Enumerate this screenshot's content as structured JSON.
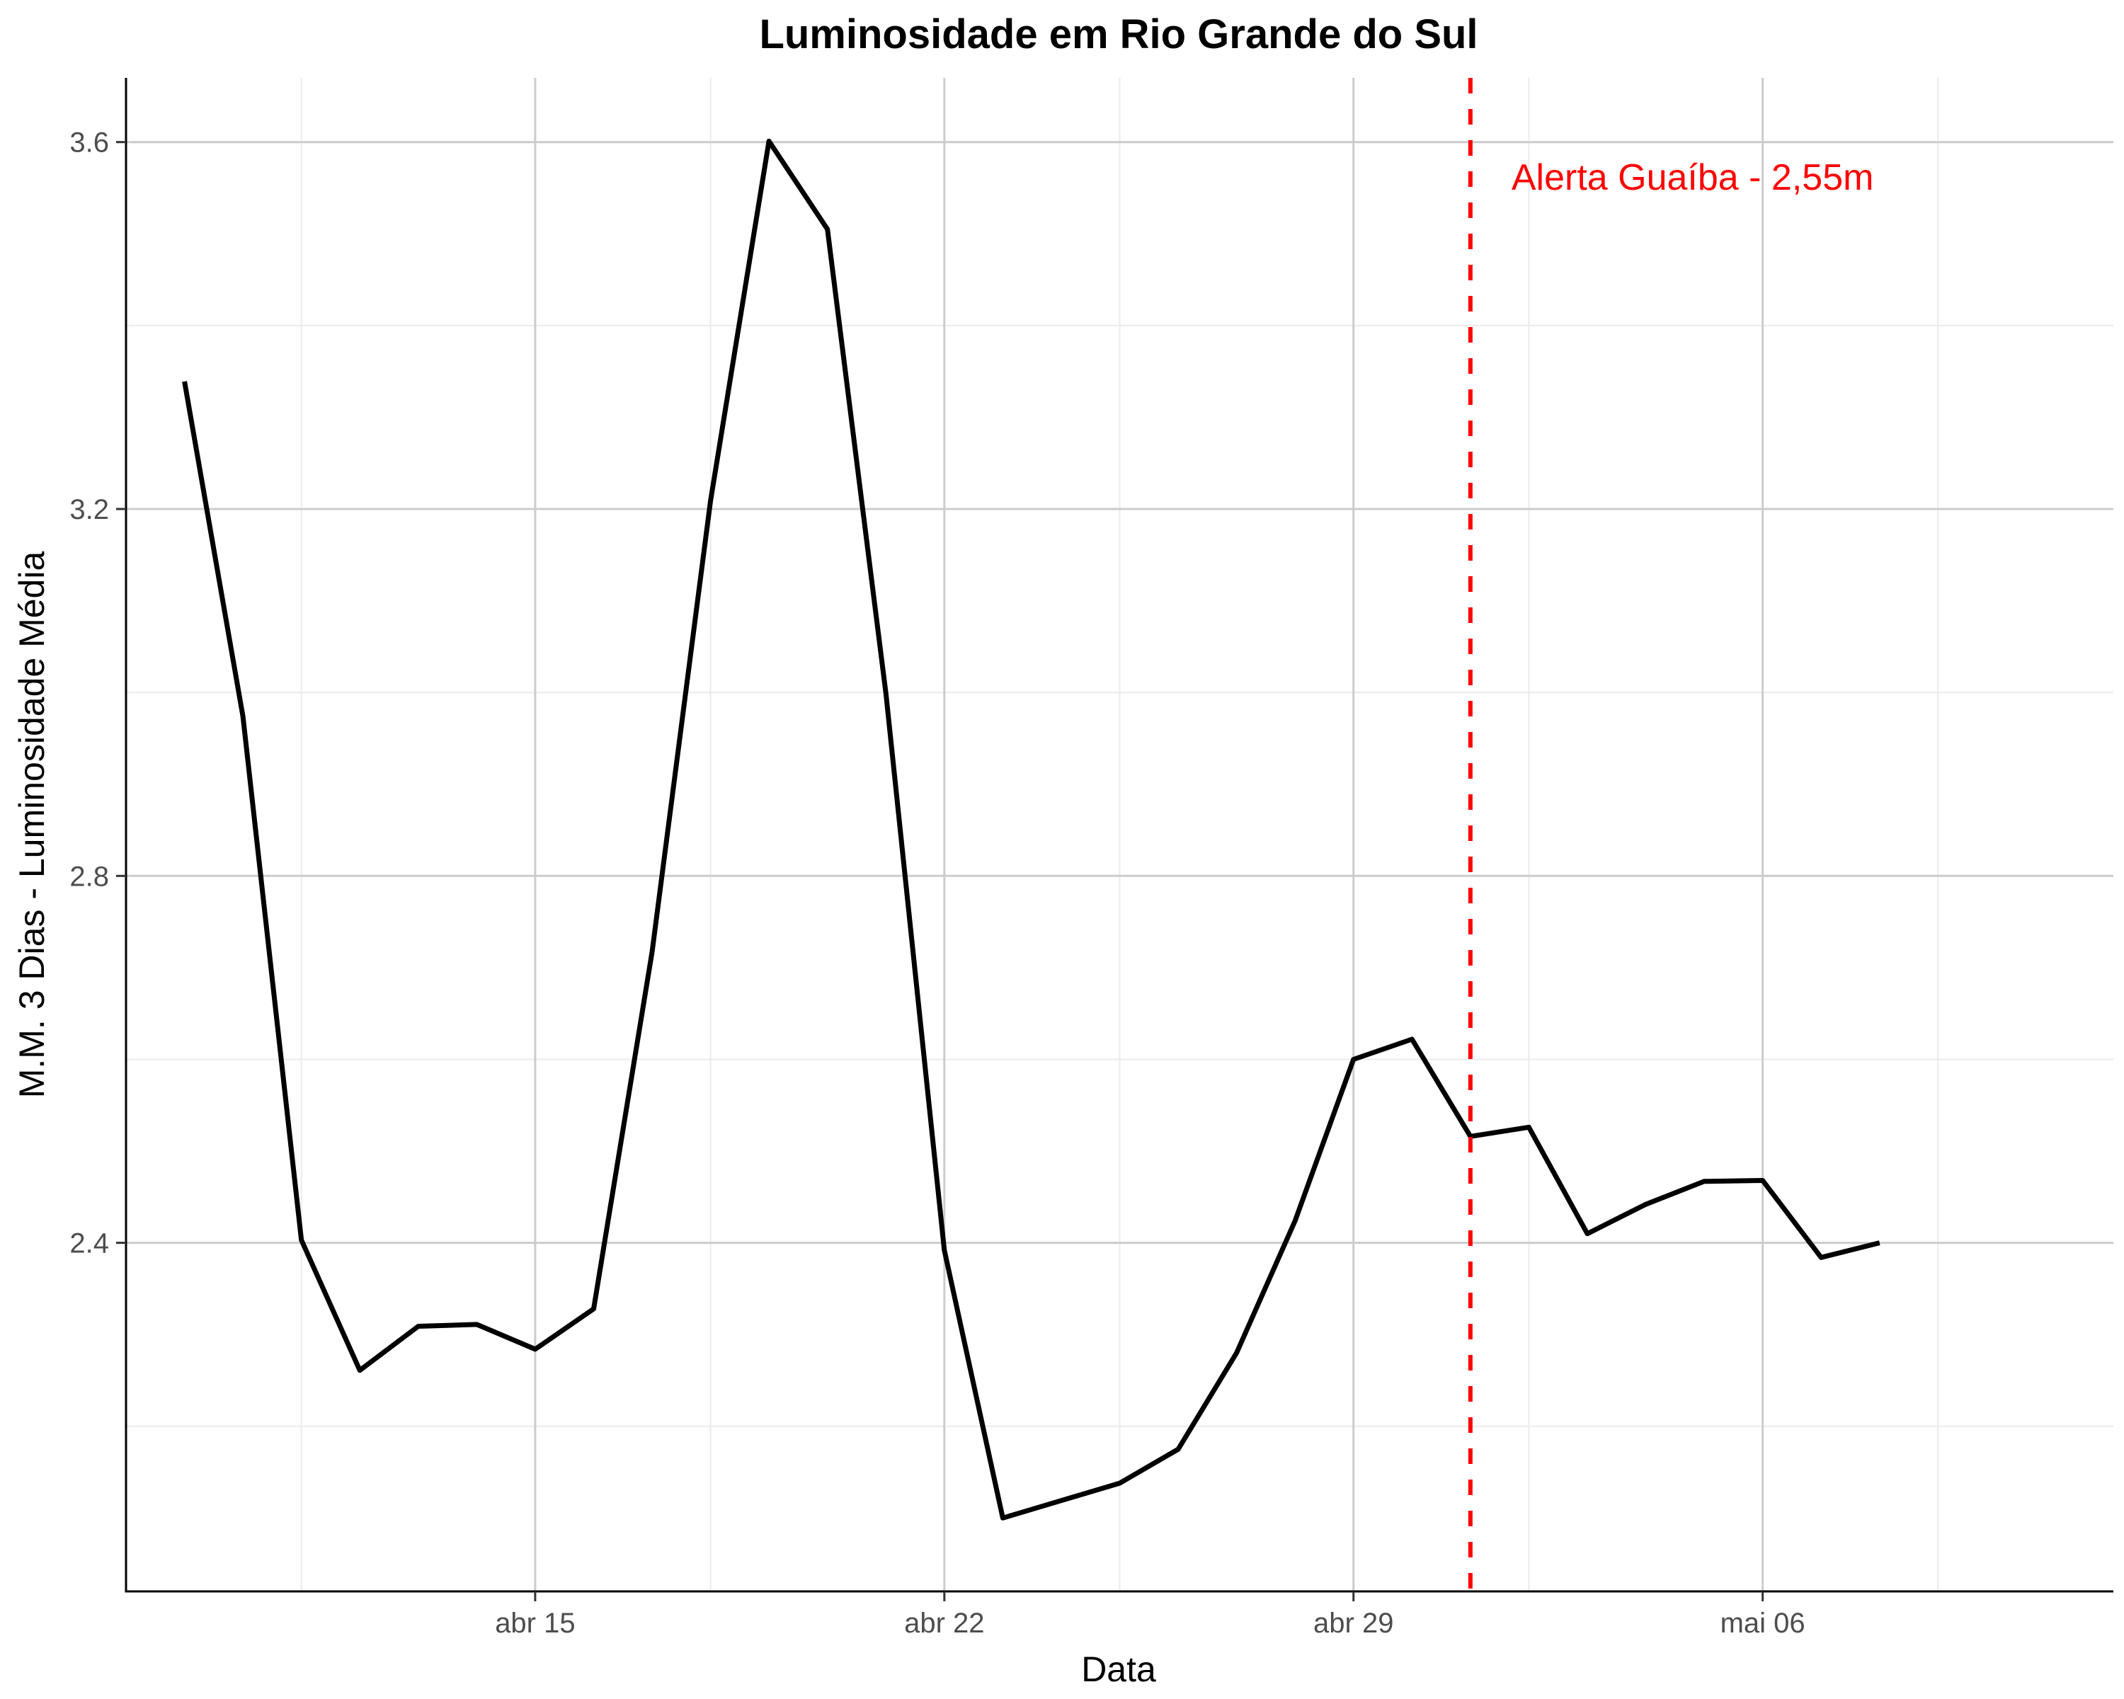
{
  "chart_data": {
    "type": "line",
    "title": "Luminosidade em Rio Grande do Sul",
    "xlabel": "Data",
    "ylabel": "M.M. 3 Dias - Luminosidade Média",
    "x_axis": {
      "type": "date",
      "range": [
        "2024-04-08",
        "2024-05-12"
      ],
      "ticks": [
        {
          "date": "2024-04-15",
          "label": "abr 15"
        },
        {
          "date": "2024-04-22",
          "label": "abr 22"
        },
        {
          "date": "2024-04-29",
          "label": "abr 29"
        },
        {
          "date": "2024-05-06",
          "label": "mai 06"
        }
      ],
      "minor_ticks": [
        "2024-04-11",
        "2024-04-18",
        "2024-04-25",
        "2024-05-02",
        "2024-05-09"
      ]
    },
    "y_axis": {
      "range": [
        2.02,
        3.67
      ],
      "ticks": [
        2.4,
        2.8,
        3.2,
        3.6
      ],
      "minor_ticks": [
        2.2,
        2.6,
        3.0,
        3.4
      ],
      "tick_labels": [
        "2.4",
        "2.8",
        "3.2",
        "3.6"
      ]
    },
    "grid": true,
    "line_color": "#000000",
    "series": [
      {
        "name": "",
        "points": [
          {
            "x": "2024-04-09",
            "y": 3.339
          },
          {
            "x": "2024-04-10",
            "y": 2.974
          },
          {
            "x": "2024-04-11",
            "y": 2.403
          },
          {
            "x": "2024-04-12",
            "y": 2.261
          },
          {
            "x": "2024-04-13",
            "y": 2.309
          },
          {
            "x": "2024-04-14",
            "y": 2.311
          },
          {
            "x": "2024-04-15",
            "y": 2.284
          },
          {
            "x": "2024-04-16",
            "y": 2.328
          },
          {
            "x": "2024-04-17",
            "y": 2.717
          },
          {
            "x": "2024-04-18",
            "y": 3.209
          },
          {
            "x": "2024-04-19",
            "y": 3.601
          },
          {
            "x": "2024-04-20",
            "y": 3.505
          },
          {
            "x": "2024-04-21",
            "y": 2.999
          },
          {
            "x": "2024-04-22",
            "y": 2.392
          },
          {
            "x": "2024-04-23",
            "y": 2.1
          },
          {
            "x": "2024-04-24",
            "y": 2.119
          },
          {
            "x": "2024-04-25",
            "y": 2.138
          },
          {
            "x": "2024-04-26",
            "y": 2.175
          },
          {
            "x": "2024-04-27",
            "y": 2.28
          },
          {
            "x": "2024-04-28",
            "y": 2.424
          },
          {
            "x": "2024-04-29",
            "y": 2.6
          },
          {
            "x": "2024-04-30",
            "y": 2.622
          },
          {
            "x": "2024-05-01",
            "y": 2.516
          },
          {
            "x": "2024-05-02",
            "y": 2.526
          },
          {
            "x": "2024-05-03",
            "y": 2.41
          },
          {
            "x": "2024-05-04",
            "y": 2.442
          },
          {
            "x": "2024-05-05",
            "y": 2.467
          },
          {
            "x": "2024-05-06",
            "y": 2.468
          },
          {
            "x": "2024-05-07",
            "y": 2.384
          },
          {
            "x": "2024-05-08",
            "y": 2.4
          }
        ]
      }
    ],
    "annotations": [
      {
        "type": "vline",
        "x": "2024-05-01",
        "label": "Alerta Guaíba - 2,55m",
        "color": "#ff0000",
        "style": "dashed"
      }
    ]
  }
}
